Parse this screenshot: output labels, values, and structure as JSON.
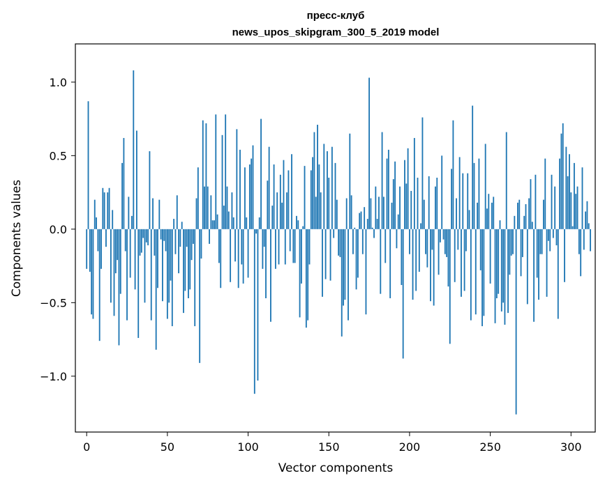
{
  "chart_data": {
    "type": "bar",
    "title": "пресс-клуб",
    "subtitle": "news_upos_skipgram_300_5_2019 model",
    "xlabel": "Vector components",
    "ylabel": "Components values",
    "xlim": [
      -7,
      315
    ],
    "ylim": [
      -1.38,
      1.26
    ],
    "xticks": [
      0,
      50,
      100,
      150,
      200,
      250,
      300
    ],
    "xtick_labels": [
      "0",
      "50",
      "100",
      "150",
      "200",
      "250",
      "300"
    ],
    "yticks": [
      -1.0,
      -0.5,
      0.0,
      0.5,
      1.0
    ],
    "ytick_labels": [
      "−1.0",
      "−0.5",
      "0.0",
      "0.5",
      "1.0"
    ],
    "bar_color": "#1f77b4",
    "values": [
      -0.27,
      0.87,
      -0.29,
      -0.58,
      -0.61,
      0.2,
      0.08,
      -0.15,
      -0.76,
      -0.27,
      0.28,
      0.25,
      -0.12,
      0.25,
      0.28,
      -0.5,
      0.13,
      -0.59,
      -0.3,
      -0.21,
      -0.79,
      -0.44,
      0.45,
      0.62,
      -0.15,
      -0.62,
      0.22,
      -0.33,
      0.09,
      1.08,
      -0.41,
      0.67,
      -0.74,
      -0.18,
      -0.16,
      -0.06,
      -0.5,
      -0.09,
      -0.11,
      0.53,
      -0.62,
      0.21,
      -0.18,
      -0.82,
      -0.4,
      0.2,
      -0.07,
      -0.49,
      -0.08,
      -0.15,
      -0.61,
      -0.5,
      -0.35,
      -0.66,
      0.07,
      -0.17,
      0.23,
      -0.3,
      -0.12,
      0.05,
      -0.57,
      -0.42,
      -0.12,
      -0.47,
      -0.41,
      -0.21,
      -0.1,
      -0.66,
      0.21,
      0.42,
      -0.91,
      -0.2,
      0.74,
      0.29,
      0.72,
      0.29,
      -0.1,
      0.23,
      0.06,
      0.06,
      0.78,
      0.1,
      -0.23,
      -0.4,
      0.64,
      0.16,
      0.78,
      0.29,
      0.12,
      -0.36,
      0.25,
      0.08,
      -0.22,
      0.68,
      -0.4,
      0.54,
      -0.24,
      -0.37,
      0.42,
      0.08,
      -0.33,
      0.44,
      0.48,
      0.57,
      -1.12,
      -0.03,
      -1.03,
      0.08,
      0.75,
      -0.27,
      -0.12,
      -0.47,
      0.33,
      0.56,
      -0.63,
      0.16,
      0.44,
      -0.27,
      0.25,
      -0.24,
      0.37,
      0.18,
      0.47,
      -0.24,
      0.25,
      0.4,
      -0.15,
      0.51,
      -0.23,
      -0.23,
      0.09,
      0.06,
      -0.6,
      -0.37,
      0.02,
      0.43,
      -0.67,
      -0.62,
      -0.24,
      0.4,
      0.49,
      0.66,
      0.22,
      0.71,
      0.44,
      0.25,
      -0.46,
      0.58,
      -0.34,
      0.53,
      0.35,
      -0.35,
      0.56,
      -0.06,
      0.45,
      0.2,
      -0.18,
      -0.19,
      -0.73,
      -0.52,
      -0.48,
      0.21,
      -0.62,
      0.65,
      0.23,
      -0.17,
      0.01,
      -0.41,
      -0.33,
      0.11,
      0.12,
      -0.17,
      0.15,
      -0.58,
      0.07,
      1.03,
      0.21,
      0.01,
      -0.06,
      0.29,
      0.07,
      0.22,
      -0.44,
      0.66,
      0.22,
      -0.23,
      0.48,
      0.54,
      -0.47,
      0.18,
      0.34,
      0.46,
      -0.13,
      0.1,
      0.29,
      -0.38,
      -0.88,
      0.47,
      0.31,
      0.55,
      -0.17,
      0.26,
      -0.48,
      0.62,
      -0.42,
      0.35,
      -0.29,
      0.04,
      0.76,
      0.2,
      -0.17,
      -0.26,
      0.36,
      -0.49,
      -0.14,
      -0.52,
      0.29,
      0.35,
      -0.31,
      -0.09,
      0.5,
      -0.07,
      -0.17,
      -0.19,
      -0.39,
      -0.78,
      0.41,
      0.74,
      -0.36,
      0.21,
      -0.14,
      0.49,
      -0.46,
      0.38,
      -0.42,
      -0.15,
      0.38,
      0.13,
      -0.62,
      0.84,
      0.45,
      -0.58,
      0.18,
      0.48,
      -0.28,
      -0.66,
      -0.59,
      0.58,
      0.14,
      0.24,
      -0.37,
      0.18,
      0.22,
      -0.64,
      -0.47,
      -0.44,
      0.06,
      -0.56,
      -0.5,
      -0.65,
      0.66,
      -0.57,
      -0.31,
      -0.18,
      -0.17,
      0.09,
      -1.26,
      0.18,
      0.2,
      -0.32,
      -0.19,
      0.09,
      0.17,
      -0.51,
      0.21,
      0.34,
      0.05,
      -0.63,
      0.37,
      -0.33,
      -0.48,
      -0.17,
      -0.17,
      0.2,
      0.48,
      -0.46,
      -0.08,
      -0.15,
      0.37,
      -0.06,
      0.29,
      -0.11,
      -0.61,
      0.48,
      0.65,
      0.72,
      -0.36,
      0.56,
      0.36,
      0.51,
      0.25,
      0.02,
      0.45,
      0.24,
      0.29,
      -0.17,
      -0.32,
      0.42,
      -0.14,
      0.12,
      0.19,
      0.04,
      -0.15
    ]
  }
}
